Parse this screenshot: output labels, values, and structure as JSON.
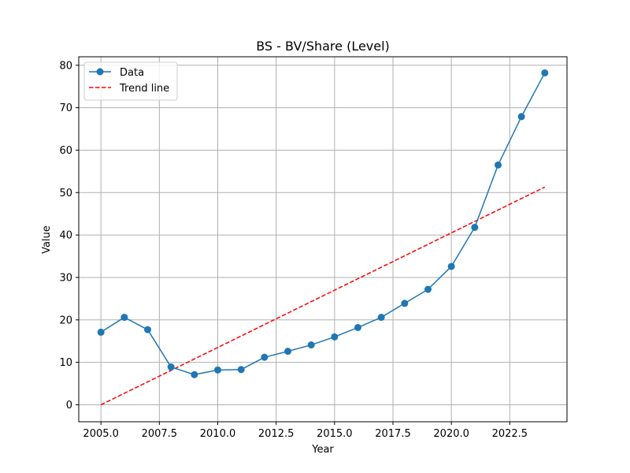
{
  "chart_data": {
    "type": "line",
    "title": "BS - BV/Share (Level)",
    "xlabel": "Year",
    "ylabel": "Value",
    "xlim": [
      2004.05,
      2024.95
    ],
    "ylim": [
      -4,
      82
    ],
    "xticks": [
      2005.0,
      2007.5,
      2010.0,
      2012.5,
      2015.0,
      2017.5,
      2020.0,
      2022.5
    ],
    "xtick_labels": [
      "2005.0",
      "2007.5",
      "2010.0",
      "2012.5",
      "2015.0",
      "2017.5",
      "2020.0",
      "2022.5"
    ],
    "yticks": [
      0,
      10,
      20,
      30,
      40,
      50,
      60,
      70,
      80
    ],
    "ytick_labels": [
      "0",
      "10",
      "20",
      "30",
      "40",
      "50",
      "60",
      "70",
      "80"
    ],
    "grid": true,
    "legend_position": "top-left",
    "series": [
      {
        "name": "Data",
        "style": "line-with-markers",
        "color": "#1f77b4",
        "x": [
          2005,
          2006,
          2007,
          2008,
          2009,
          2010,
          2011,
          2012,
          2013,
          2014,
          2015,
          2016,
          2017,
          2018,
          2019,
          2020,
          2021,
          2022,
          2023,
          2024
        ],
        "y": [
          17.1,
          20.6,
          17.7,
          8.9,
          7.1,
          8.2,
          8.3,
          11.2,
          12.6,
          14.1,
          16.0,
          18.2,
          20.6,
          23.9,
          27.2,
          32.6,
          41.8,
          56.5,
          67.9,
          78.2
        ]
      },
      {
        "name": "Trend line",
        "style": "dashed",
        "color": "#ff0000",
        "x": [
          2005,
          2024
        ],
        "y": [
          0.0,
          51.3
        ]
      }
    ]
  }
}
